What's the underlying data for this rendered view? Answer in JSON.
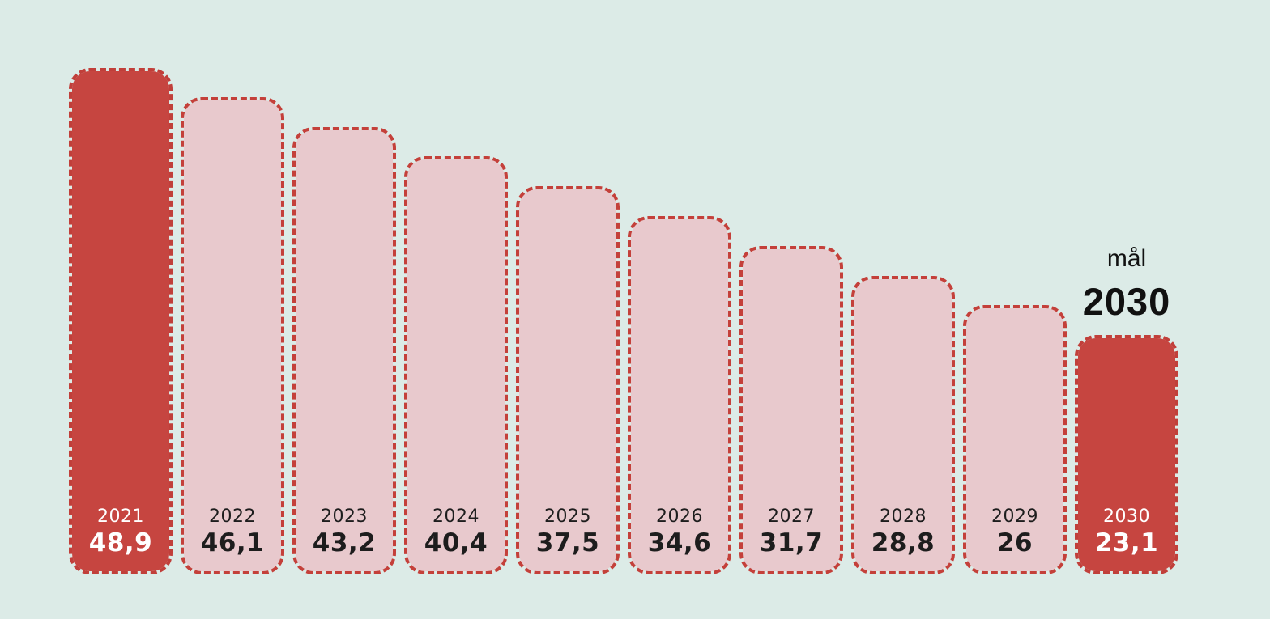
{
  "colors": {
    "background": "#dcebe7",
    "solid_bar_fill": "#c64540",
    "light_bar_fill": "#e8c9cd",
    "dashed_border": "#c4403a",
    "solid_bar_text": "#ffffff",
    "light_bar_text": "#1d1d1d",
    "annotation_text": "#111111"
  },
  "chart_data": {
    "type": "bar",
    "categories": [
      "2021",
      "2022",
      "2023",
      "2024",
      "2025",
      "2026",
      "2027",
      "2028",
      "2029",
      "2030"
    ],
    "values": [
      48.9,
      46.1,
      43.2,
      40.4,
      37.5,
      34.6,
      31.7,
      28.8,
      26,
      23.1
    ],
    "value_labels": [
      "48,9",
      "46,1",
      "43,2",
      "40,4",
      "37,5",
      "34,6",
      "31,7",
      "28,8",
      "26",
      "23,1"
    ],
    "solid_years": [
      "2021",
      "2030"
    ],
    "title": "",
    "xlabel": "",
    "ylabel": "",
    "ylim": [
      0,
      48.9
    ],
    "grid": false,
    "legend": "none",
    "bar_style_note": "rounded bars with red dashed outline; first and last bar solid red with white labels, others light pink with dark labels",
    "annotation": {
      "line1": "mål",
      "line2": "2030",
      "position": "above last bar"
    }
  }
}
